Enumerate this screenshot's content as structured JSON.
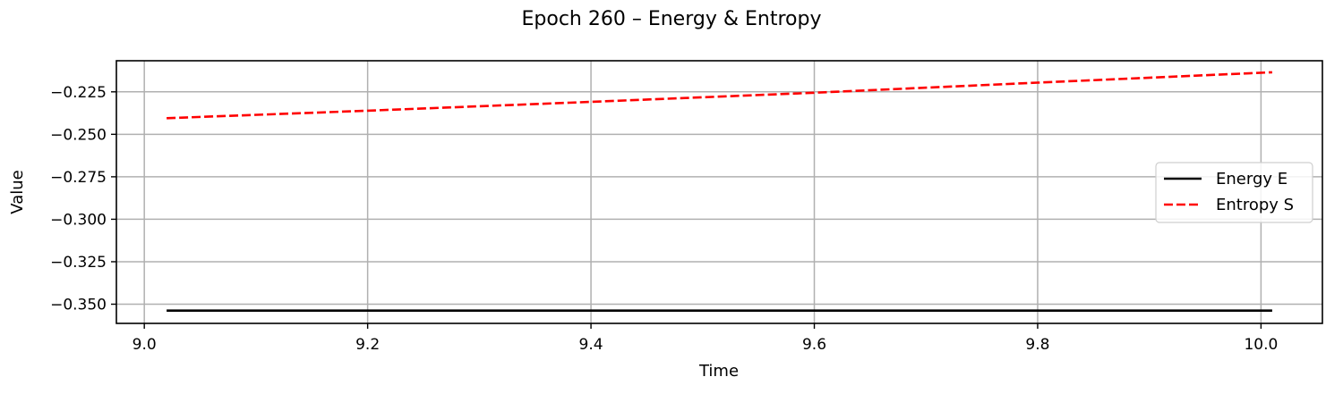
{
  "chart_data": {
    "type": "line",
    "title": "Epoch 260 – Energy & Entropy",
    "xlabel": "Time",
    "ylabel": "Value",
    "xlim": [
      8.975,
      10.055
    ],
    "ylim": [
      -0.3613,
      -0.2067
    ],
    "xticks": [
      9.0,
      9.2,
      9.4,
      9.6,
      9.8,
      10.0
    ],
    "xtick_labels": [
      "9.0",
      "9.2",
      "9.4",
      "9.6",
      "9.8",
      "10.0"
    ],
    "yticks": [
      -0.225,
      -0.25,
      -0.275,
      -0.3,
      -0.325,
      -0.35
    ],
    "ytick_labels": [
      "−0.225",
      "−0.250",
      "−0.275",
      "−0.300",
      "−0.325",
      "−0.350"
    ],
    "grid": true,
    "legend_position": "center-right",
    "series": [
      {
        "name": "Energy E",
        "color": "#000000",
        "linestyle": "solid",
        "x": [
          9.02,
          10.01
        ],
        "y": [
          -0.3538,
          -0.3538
        ]
      },
      {
        "name": "Entropy S",
        "color": "#ff0000",
        "linestyle": "dashed",
        "x": [
          9.02,
          9.2,
          9.4,
          9.6,
          9.8,
          10.01
        ],
        "y": [
          -0.2405,
          -0.2361,
          -0.2309,
          -0.2255,
          -0.2196,
          -0.2135
        ]
      }
    ]
  }
}
